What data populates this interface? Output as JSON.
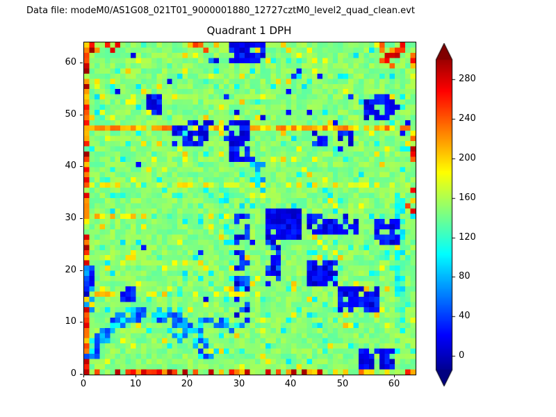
{
  "header": {
    "data_file_label": "Data file: modeM0/AS1G08_021T01_9000001880_12727cztM0_level2_quad_clean.evt"
  },
  "chart_data": {
    "type": "heatmap",
    "title": "Quadrant 1 DPH",
    "grid_size": [
      64,
      64
    ],
    "x_range": [
      0,
      64
    ],
    "y_range": [
      0,
      64
    ],
    "x_ticks": [
      0,
      10,
      20,
      30,
      40,
      50,
      60
    ],
    "y_ticks": [
      0,
      10,
      20,
      30,
      40,
      50,
      60
    ],
    "colormap": "jet",
    "value_range": [
      -20,
      310
    ],
    "colorbar": {
      "ticks": [
        0,
        40,
        80,
        120,
        160,
        200,
        240,
        280
      ],
      "display_range": [
        -14,
        300
      ],
      "extend": "both"
    },
    "base": {
      "value": 148,
      "noise": 14,
      "seed": 42,
      "cyan_speckle_prob": 0.05,
      "cyan_value": 110,
      "yellow_speckle_prob": 0.04,
      "yellow_value": 192,
      "dark_speckle_prob": 0.006,
      "dark_value": 10
    },
    "features": [
      {
        "name": "left-edge-hot",
        "x": [
          0,
          1
        ],
        "y": [
          0,
          64
        ],
        "v": [
          190,
          300
        ],
        "p": 0.8
      },
      {
        "name": "bottom-edge-hot",
        "x": [
          0,
          64
        ],
        "y": [
          0,
          1
        ],
        "v": [
          190,
          300
        ],
        "p": 0.6
      },
      {
        "name": "row47-hot",
        "x": [
          1,
          63
        ],
        "y": [
          47,
          48
        ],
        "v": [
          180,
          240
        ],
        "p": 0.85
      },
      {
        "name": "row36-warm",
        "x": [
          1,
          63
        ],
        "y": [
          36,
          37
        ],
        "v": [
          165,
          200
        ],
        "p": 0.5
      },
      {
        "name": "row15-warm",
        "x": [
          2,
          33
        ],
        "y": [
          15,
          16
        ],
        "v": [
          175,
          215
        ],
        "p": 0.55
      },
      {
        "name": "row30-warm-left",
        "x": [
          1,
          12
        ],
        "y": [
          30,
          31
        ],
        "v": [
          180,
          220
        ],
        "p": 0.5
      },
      {
        "name": "top-left-corner-hot",
        "x": [
          0,
          7
        ],
        "y": [
          62,
          64
        ],
        "v": [
          200,
          300
        ],
        "p": 0.45
      },
      {
        "name": "top-right-corner-hot",
        "x": [
          57,
          64
        ],
        "y": [
          59,
          64
        ],
        "v": [
          200,
          300
        ],
        "p": 0.55
      },
      {
        "name": "top-mid-hot",
        "x": [
          19,
          26
        ],
        "y": [
          62,
          64
        ],
        "v": [
          200,
          280
        ],
        "p": 0.35
      },
      {
        "name": "right-edge-hot-mid",
        "x": [
          62,
          64
        ],
        "y": [
          31,
          36
        ],
        "v": [
          200,
          300
        ],
        "p": 0.5
      },
      {
        "name": "right-edge-hot-upper",
        "x": [
          62,
          64
        ],
        "y": [
          41,
          47
        ],
        "v": [
          200,
          300
        ],
        "p": 0.5
      },
      {
        "name": "right-cyan-strip",
        "x": [
          60,
          62
        ],
        "y": [
          4,
          36
        ],
        "v": [
          90,
          135
        ],
        "p": 0.6
      },
      {
        "name": "col27-cyan",
        "x": [
          27,
          29
        ],
        "y": [
          18,
          36
        ],
        "v": [
          90,
          135
        ],
        "p": 0.45
      },
      {
        "name": "blob-top",
        "x": [
          28,
          35
        ],
        "y": [
          60,
          64
        ],
        "v": [
          0,
          40
        ],
        "p": 0.85
      },
      {
        "name": "blob-13-51",
        "x": [
          12,
          15
        ],
        "y": [
          50,
          54
        ],
        "v": [
          0,
          40
        ],
        "p": 0.85
      },
      {
        "name": "blob-20-46",
        "x": [
          17,
          25
        ],
        "y": [
          44,
          49
        ],
        "v": [
          0,
          45
        ],
        "p": 0.6
      },
      {
        "name": "blob-29-44",
        "x": [
          27,
          32
        ],
        "y": [
          41,
          49
        ],
        "v": [
          0,
          45
        ],
        "p": 0.75
      },
      {
        "name": "line-col30",
        "x": [
          29,
          32
        ],
        "y": [
          10,
          31
        ],
        "v": [
          0,
          60
        ],
        "p": 0.5
      },
      {
        "name": "blob-38-29",
        "x": [
          35,
          42
        ],
        "y": [
          26,
          32
        ],
        "v": [
          0,
          35
        ],
        "p": 0.9
      },
      {
        "name": "blob-48-29",
        "x": [
          43,
          53
        ],
        "y": [
          27,
          31
        ],
        "v": [
          0,
          40
        ],
        "p": 0.7
      },
      {
        "name": "blob-58-27",
        "x": [
          56,
          61
        ],
        "y": [
          25,
          30
        ],
        "v": [
          0,
          40
        ],
        "p": 0.8
      },
      {
        "name": "line-col36",
        "x": [
          35,
          38
        ],
        "y": [
          17,
          26
        ],
        "v": [
          0,
          60
        ],
        "p": 0.5
      },
      {
        "name": "blob-46-19",
        "x": [
          43,
          49
        ],
        "y": [
          17,
          22
        ],
        "v": [
          0,
          35
        ],
        "p": 0.85
      },
      {
        "name": "blob-53-14",
        "x": [
          49,
          57
        ],
        "y": [
          12,
          17
        ],
        "v": [
          0,
          40
        ],
        "p": 0.75
      },
      {
        "name": "blob-56-3",
        "x": [
          53,
          60
        ],
        "y": [
          1,
          5
        ],
        "v": [
          0,
          35
        ],
        "p": 0.85
      },
      {
        "name": "blob-8-15",
        "x": [
          7,
          10
        ],
        "y": [
          14,
          17
        ],
        "v": [
          0,
          45
        ],
        "p": 0.8
      },
      {
        "name": "blob-57-51",
        "x": [
          54,
          60
        ],
        "y": [
          49,
          54
        ],
        "v": [
          0,
          40
        ],
        "p": 0.75
      },
      {
        "name": "blob-45-45",
        "x": [
          44,
          47
        ],
        "y": [
          44,
          47
        ],
        "v": [
          0,
          50
        ],
        "p": 0.6
      },
      {
        "name": "blob-50-45",
        "x": [
          49,
          52
        ],
        "y": [
          43,
          47
        ],
        "v": [
          0,
          50
        ],
        "p": 0.55
      },
      {
        "name": "left-edge-cool",
        "x": [
          0,
          2
        ],
        "y": [
          12,
          21
        ],
        "v": [
          0,
          80
        ],
        "p": 0.55
      },
      {
        "name": "blob-34-37",
        "x": [
          33,
          35
        ],
        "y": [
          33,
          41
        ],
        "v": [
          40,
          110
        ],
        "p": 0.5
      },
      {
        "name": "dot-41-58",
        "x": [
          40,
          42
        ],
        "y": [
          57,
          59
        ],
        "v": [
          0,
          60
        ],
        "p": 0.4
      },
      {
        "name": "dot-25-60",
        "x": [
          24,
          26
        ],
        "y": [
          59,
          61
        ],
        "v": [
          0,
          60
        ],
        "p": 0.4
      },
      {
        "name": "arc-bottom-left",
        "shape": "arc",
        "cx": 12.5,
        "cy": 1.0,
        "r": 11.0,
        "w": 1.3,
        "a0": 10,
        "a1": 170,
        "v": [
          30,
          110
        ],
        "p": 0.85
      },
      {
        "name": "arc-bottom-left-2",
        "shape": "arc",
        "cx": 25.0,
        "cy": 0.0,
        "r": 10.0,
        "w": 1.2,
        "a0": 55,
        "a1": 150,
        "v": [
          40,
          120
        ],
        "p": 0.6
      }
    ]
  }
}
